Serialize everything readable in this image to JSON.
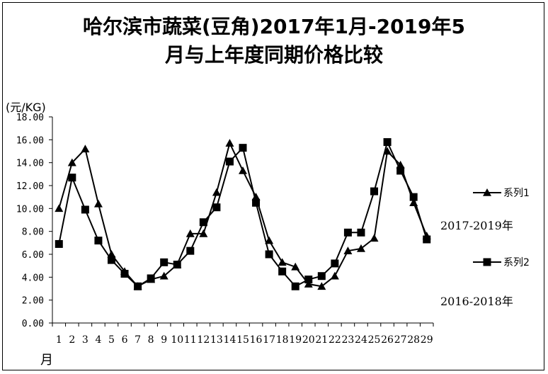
{
  "chart_data": {
    "type": "line",
    "title": "哈尔滨市蔬菜(豆角)2017年1月-2019年5月与上年度同期价格比较",
    "title_lines": [
      "哈尔滨市蔬菜(豆角)2017年1月-2019年5",
      "月与上年度同期价格比较"
    ],
    "ylabel": "(元/KG)",
    "xlabel": "月",
    "ylim": [
      0,
      18
    ],
    "yticks": [
      "0.00",
      "2.00",
      "4.00",
      "6.00",
      "8.00",
      "10.00",
      "12.00",
      "14.00",
      "16.00",
      "18.00"
    ],
    "categories": [
      "1",
      "2",
      "3",
      "4",
      "5",
      "6",
      "7",
      "8",
      "9",
      "10",
      "11",
      "12",
      "13",
      "14",
      "15",
      "16",
      "17",
      "18",
      "19",
      "20",
      "21",
      "22",
      "23",
      "24",
      "25",
      "26",
      "27",
      "28",
      "29"
    ],
    "grid": false,
    "legend_position": "right",
    "series": [
      {
        "name": "系列1",
        "marker": "triangle",
        "range_label": "2017-2019年",
        "values": [
          10.0,
          14.0,
          15.2,
          10.4,
          6.0,
          4.5,
          3.2,
          3.8,
          4.1,
          5.1,
          7.8,
          7.8,
          11.4,
          15.7,
          13.3,
          11.0,
          7.2,
          5.3,
          4.9,
          3.4,
          3.2,
          4.1,
          6.3,
          6.5,
          7.4,
          15.0,
          13.8,
          10.5,
          7.6
        ]
      },
      {
        "name": "系列2",
        "marker": "square",
        "range_label": "2016-2018年",
        "values": [
          6.9,
          12.7,
          9.9,
          7.2,
          5.5,
          4.3,
          3.2,
          3.9,
          5.3,
          5.1,
          6.3,
          8.8,
          10.1,
          14.1,
          15.3,
          10.5,
          6.0,
          4.5,
          3.2,
          3.8,
          4.1,
          5.2,
          7.9,
          7.9,
          11.5,
          15.8,
          13.3,
          11.0,
          7.3
        ]
      }
    ]
  }
}
